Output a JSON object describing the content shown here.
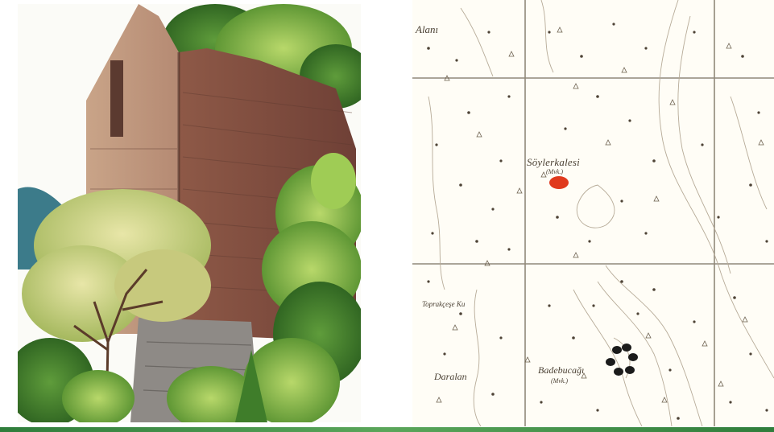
{
  "photo": {
    "alt_subject": ""
  },
  "map": {
    "labels": {
      "alani": "Alanı",
      "soylerkalesi": "Söylerkalesi",
      "soylerkalesi_sub": "(Mvk.)",
      "toprakcese": "Toprakçeşe Ku",
      "daralan": "Daralan",
      "badebucagi": "Badebucağı",
      "badebucagi_sub": "(Mvk.)"
    },
    "markers": {
      "red_marker_color": "#e03a1e",
      "black_marker_color": "#1b1b1b"
    }
  },
  "colors": {
    "bottom_bar": "#2f7d3b"
  }
}
